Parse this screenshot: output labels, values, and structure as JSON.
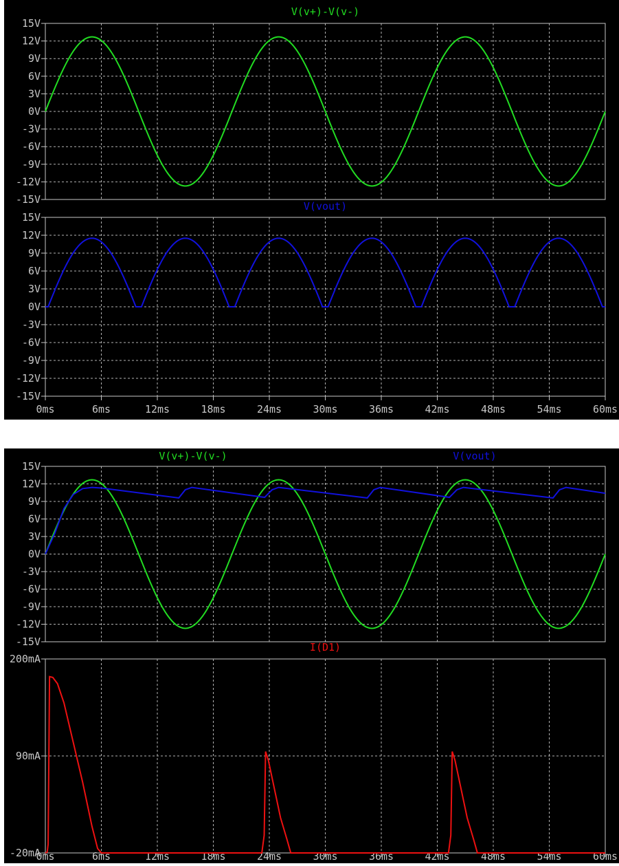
{
  "colors": {
    "background": "#000000",
    "axes": "#c8c8c8",
    "grid": "#b4b4b4",
    "green_trace": "#22dd22",
    "blue_trace": "#1111dd",
    "red_trace": "#ee1111"
  },
  "chart_data": [
    {
      "type": "line",
      "window": 1,
      "pane": "top",
      "title": "V(v+)-V(v-)",
      "series": [
        {
          "name": "V(v+)-V(v-)",
          "color": "#22dd22",
          "kind": "sine",
          "amplitude": 12.7,
          "period_ms": 20
        }
      ],
      "xlim": [
        0,
        60
      ],
      "ylim": [
        -15,
        15
      ],
      "x_ticks": [
        "0ms",
        "6ms",
        "12ms",
        "18ms",
        "24ms",
        "30ms",
        "36ms",
        "42ms",
        "48ms",
        "54ms",
        "60ms"
      ],
      "y_ticks": [
        "15V",
        "12V",
        "9V",
        "6V",
        "3V",
        "0V",
        "-3V",
        "-6V",
        "-9V",
        "-12V",
        "-15V"
      ],
      "grid": true
    },
    {
      "type": "line",
      "window": 1,
      "pane": "bottom",
      "title": "V(vout)",
      "series": [
        {
          "name": "V(vout)",
          "color": "#1111dd",
          "kind": "full_wave_rectified",
          "peak": 11.5,
          "drop_v": 1.2,
          "period_ms": 20
        }
      ],
      "xlim": [
        0,
        60
      ],
      "ylim": [
        -15,
        15
      ],
      "x_ticks": [
        "0ms",
        "6ms",
        "12ms",
        "18ms",
        "24ms",
        "30ms",
        "36ms",
        "42ms",
        "48ms",
        "54ms",
        "60ms"
      ],
      "y_ticks": [
        "15V",
        "12V",
        "9V",
        "6V",
        "3V",
        "0V",
        "-3V",
        "-6V",
        "-9V",
        "-12V",
        "-15V"
      ],
      "grid": true
    },
    {
      "type": "line",
      "window": 2,
      "pane": "top",
      "title": [
        "V(v+)-V(v-)",
        "V(vout)"
      ],
      "series": [
        {
          "name": "V(v+)-V(v-)",
          "color": "#22dd22",
          "kind": "sine",
          "amplitude": 12.7,
          "period_ms": 20
        },
        {
          "name": "V(vout)",
          "color": "#1111dd",
          "kind": "peak_detector",
          "peak": 11.4,
          "ripple_min": 9.6,
          "points": [
            [
              0,
              0
            ],
            [
              1,
              3.5
            ],
            [
              2,
              7.8
            ],
            [
              3,
              10.2
            ],
            [
              4,
              11.2
            ],
            [
              5,
              11.4
            ],
            [
              6,
              11.3
            ],
            [
              14.3,
              9.6
            ],
            [
              15,
              11.0
            ],
            [
              15.7,
              11.4
            ],
            [
              23.5,
              9.7
            ],
            [
              24.3,
              11.0
            ],
            [
              25.0,
              11.4
            ],
            [
              34.5,
              9.6
            ],
            [
              35.2,
              11.0
            ],
            [
              35.9,
              11.4
            ],
            [
              43.3,
              9.7
            ],
            [
              44.1,
              11.0
            ],
            [
              44.8,
              11.4
            ],
            [
              54.4,
              9.6
            ],
            [
              55.1,
              11.0
            ],
            [
              55.8,
              11.4
            ],
            [
              60,
              10.4
            ]
          ]
        }
      ],
      "xlim": [
        0,
        60
      ],
      "ylim": [
        -15,
        15
      ],
      "y_ticks": [
        "15V",
        "12V",
        "9V",
        "6V",
        "3V",
        "0V",
        "-3V",
        "-6V",
        "-9V",
        "-12V",
        "-15V"
      ],
      "grid": true
    },
    {
      "type": "line",
      "window": 2,
      "pane": "bottom",
      "title": "I(D1)",
      "series": [
        {
          "name": "I(D1)",
          "color": "#ee1111",
          "points": [
            [
              0,
              -20
            ],
            [
              0.2,
              -19
            ],
            [
              0.3,
              -10
            ],
            [
              0.45,
              180
            ],
            [
              0.8,
              179
            ],
            [
              1.3,
              172
            ],
            [
              2.0,
              150
            ],
            [
              3.0,
              105
            ],
            [
              4.0,
              60
            ],
            [
              5.0,
              10
            ],
            [
              5.6,
              -15
            ],
            [
              6.0,
              -20
            ],
            [
              23.2,
              -20
            ],
            [
              23.45,
              0
            ],
            [
              23.6,
              95
            ],
            [
              23.9,
              85
            ],
            [
              24.5,
              55
            ],
            [
              25.2,
              20
            ],
            [
              25.9,
              -5
            ],
            [
              26.3,
              -20
            ],
            [
              43.2,
              -20
            ],
            [
              43.45,
              0
            ],
            [
              43.6,
              95
            ],
            [
              43.9,
              85
            ],
            [
              44.5,
              55
            ],
            [
              45.2,
              20
            ],
            [
              45.9,
              -5
            ],
            [
              46.3,
              -20
            ],
            [
              60,
              -20
            ]
          ]
        }
      ],
      "xlim": [
        0,
        60
      ],
      "ylim": [
        -20,
        200
      ],
      "x_ticks": [
        "0ms",
        "6ms",
        "12ms",
        "18ms",
        "24ms",
        "30ms",
        "36ms",
        "42ms",
        "48ms",
        "54ms",
        "60ms"
      ],
      "y_ticks": [
        "200mA",
        "90mA",
        "-20mA"
      ],
      "y_tick_values": [
        200,
        90,
        -20
      ],
      "grid": true
    }
  ]
}
